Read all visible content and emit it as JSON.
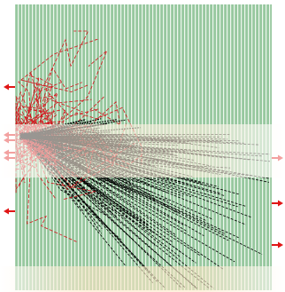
{
  "figure": {
    "description_icons": {
      "left_arrows": "red-arrow-left-icon",
      "right_arrows": "red-arrow-right-icon"
    },
    "colors": {
      "panel_fill": "#97c89f",
      "panel_stripe": "#e8f3e9",
      "trajectory_primary": "#000000",
      "trajectory_secondary": "#d4141c",
      "arrow": "#e01616",
      "background_glow": "#fde7c6"
    },
    "left_arrow_count": 6,
    "right_arrow_count": 3,
    "trajectory_count_black": 140,
    "trajectory_count_red": 70
  }
}
